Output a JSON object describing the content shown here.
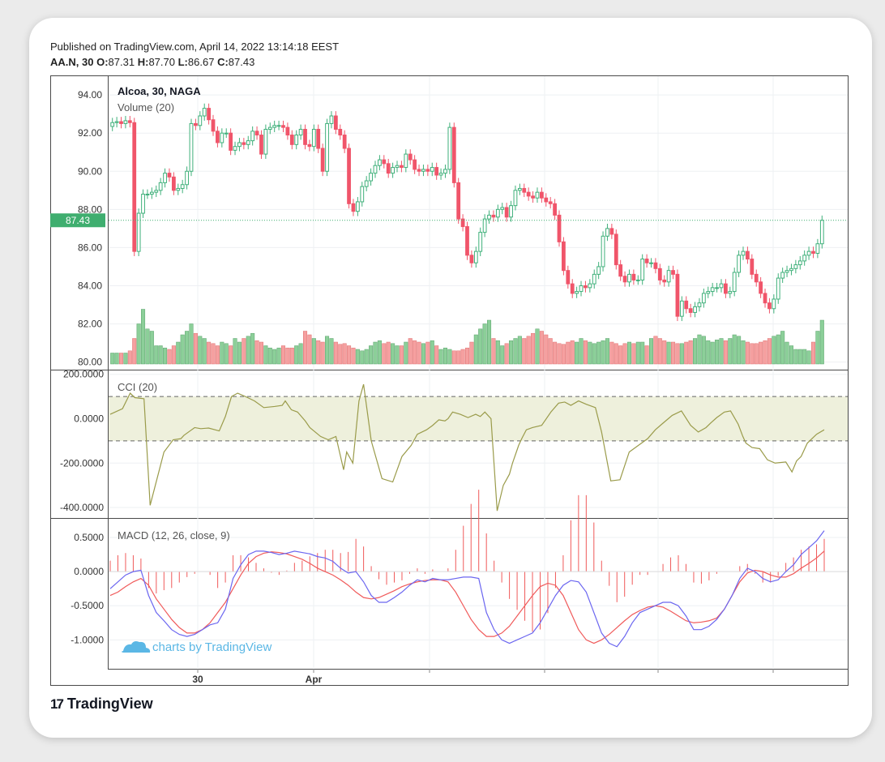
{
  "header": {
    "published": "Published on TradingView.com, April 14, 2022 13:14:18 EEST",
    "symbol": "AA.N, 30",
    "o_label": "O:",
    "o_value": "87.31",
    "h_label": "H:",
    "h_value": "87.70",
    "l_label": "L:",
    "l_value": "86.67",
    "c_label": "C:",
    "c_value": "87.43"
  },
  "colors": {
    "up": "#26a69a",
    "down": "#ef5350",
    "up_candle": "#3fb07a",
    "down_candle": "#f0556a",
    "vol_up": "#8ccf99",
    "vol_down": "#f5a0a0",
    "cci": "#9a9b4a",
    "macd": "#6b66f0",
    "signal": "#f05a5a",
    "price_tag": "#3fae6f"
  },
  "watermark": "charts by TradingView",
  "brand": "TradingView",
  "chart_data": [
    {
      "type": "candlestick",
      "title": "Alcoa, 30, NAGA",
      "volume_label": "Volume (20)",
      "ylim": [
        79.9,
        94.6
      ],
      "yticks": [
        "94.00",
        "92.00",
        "90.00",
        "88.00",
        "86.00",
        "84.00",
        "82.00",
        "80.00"
      ],
      "last_price": "87.43",
      "xticks": [
        "30",
        "Apr"
      ],
      "close": [
        92.55,
        92.6,
        92.5,
        92.65,
        92.55,
        85.8,
        87.8,
        88.8,
        88.8,
        88.9,
        89.0,
        89.4,
        89.9,
        89.7,
        89.0,
        89.1,
        89.3,
        90.0,
        92.5,
        92.4,
        92.9,
        93.3,
        92.7,
        92.1,
        91.5,
        92.0,
        92.0,
        91.1,
        91.3,
        91.5,
        91.4,
        91.6,
        92.1,
        91.9,
        90.9,
        92.2,
        92.3,
        92.4,
        92.4,
        92.3,
        91.9,
        91.4,
        91.9,
        92.2,
        91.4,
        91.3,
        92.2,
        91.2,
        90.0,
        92.5,
        92.9,
        92.2,
        91.9,
        91.2,
        88.3,
        87.9,
        88.4,
        89.2,
        89.5,
        89.9,
        90.3,
        90.6,
        90.4,
        89.9,
        90.2,
        90.3,
        90.2,
        90.9,
        90.6,
        90.1,
        90.0,
        90.1,
        90.0,
        90.2,
        89.8,
        89.9,
        90.1,
        92.3,
        89.4,
        87.5,
        87.1,
        85.6,
        85.2,
        85.8,
        86.8,
        87.5,
        87.7,
        87.6,
        88.0,
        88.1,
        87.6,
        88.2,
        89.0,
        89.1,
        88.9,
        88.7,
        88.6,
        88.9,
        88.6,
        88.4,
        88.3,
        87.7,
        86.3,
        84.8,
        84.1,
        83.6,
        83.7,
        84.0,
        83.9,
        84.1,
        84.6,
        85.0,
        86.6,
        87.0,
        86.7,
        85.1,
        84.5,
        84.2,
        84.6,
        84.3,
        84.3,
        85.4,
        85.2,
        85.2,
        84.9,
        84.3,
        84.2,
        84.8,
        84.6,
        82.4,
        83.2,
        82.8,
        82.6,
        82.9,
        83.1,
        83.6,
        83.7,
        83.9,
        83.9,
        84.1,
        83.6,
        83.7,
        84.7,
        85.6,
        85.8,
        85.4,
        84.6,
        84.2,
        83.6,
        83.1,
        82.8,
        83.3,
        84.4,
        84.7,
        84.8,
        84.9,
        85.1,
        85.3,
        85.6,
        85.8,
        85.7,
        86.2,
        87.43
      ],
      "volume_scale": "relative volume level 0-1 per bar",
      "volume": [
        0.15,
        0.15,
        0.15,
        0.15,
        0.18,
        0.35,
        0.55,
        0.75,
        0.48,
        0.45,
        0.25,
        0.25,
        0.22,
        0.2,
        0.25,
        0.3,
        0.4,
        0.45,
        0.55,
        0.42,
        0.38,
        0.35,
        0.3,
        0.28,
        0.25,
        0.3,
        0.28,
        0.25,
        0.35,
        0.3,
        0.35,
        0.38,
        0.42,
        0.32,
        0.3,
        0.25,
        0.22,
        0.2,
        0.22,
        0.25,
        0.22,
        0.22,
        0.25,
        0.28,
        0.45,
        0.4,
        0.35,
        0.32,
        0.3,
        0.38,
        0.35,
        0.3,
        0.27,
        0.28,
        0.25,
        0.22,
        0.2,
        0.18,
        0.2,
        0.25,
        0.3,
        0.32,
        0.28,
        0.3,
        0.28,
        0.25,
        0.25,
        0.3,
        0.35,
        0.32,
        0.3,
        0.28,
        0.3,
        0.32,
        0.25,
        0.2,
        0.22,
        0.2,
        0.18,
        0.18,
        0.2,
        0.22,
        0.3,
        0.4,
        0.48,
        0.55,
        0.6,
        0.35,
        0.32,
        0.25,
        0.28,
        0.32,
        0.35,
        0.38,
        0.35,
        0.38,
        0.42,
        0.48,
        0.45,
        0.4,
        0.35,
        0.3,
        0.28,
        0.27,
        0.3,
        0.32,
        0.3,
        0.35,
        0.32,
        0.3,
        0.28,
        0.3,
        0.32,
        0.35,
        0.3,
        0.28,
        0.25,
        0.28,
        0.3,
        0.28,
        0.3,
        0.3,
        0.25,
        0.35,
        0.38,
        0.35,
        0.32,
        0.3,
        0.3,
        0.28,
        0.28,
        0.3,
        0.32,
        0.35,
        0.4,
        0.38,
        0.32,
        0.3,
        0.33,
        0.35,
        0.32,
        0.35,
        0.4,
        0.38,
        0.32,
        0.3,
        0.28,
        0.28,
        0.3,
        0.32,
        0.35,
        0.38,
        0.4,
        0.45,
        0.3,
        0.25,
        0.2,
        0.2,
        0.2,
        0.18,
        0.3,
        0.45,
        0.6
      ]
    },
    {
      "type": "line",
      "title": "CCI (20)",
      "ylim": [
        -440,
        210
      ],
      "yticks": [
        "200.0000",
        "0.0000",
        "-200.0000",
        "-400.0000"
      ],
      "bands": [
        100,
        -100
      ],
      "x": [
        0,
        8,
        13,
        16,
        22,
        26,
        35,
        41,
        46,
        48,
        52,
        55,
        59,
        64,
        71,
        75,
        79,
        83,
        88,
        94,
        100,
        107,
        112,
        114,
        118,
        122,
        127,
        130,
        137,
        142,
        147,
        152,
        154,
        158,
        162,
        165,
        170,
        177,
        184,
        190,
        196,
        200,
        206,
        210,
        214,
        218,
        220,
        223,
        228,
        233,
        238,
        241,
        244,
        248,
        252,
        256,
        260,
        262,
        266,
        268,
        271,
        275,
        281,
        287,
        292,
        296,
        300,
        305,
        310,
        316,
        320,
        326,
        332,
        338,
        344,
        350,
        355,
        360,
        366,
        372,
        378,
        383,
        388,
        391,
        395,
        400,
        404,
        409,
        412,
        414,
        418,
        423,
        428,
        433,
        440,
        444,
        447,
        450,
        454,
        460,
        465
      ],
      "values": [
        20,
        45,
        115,
        95,
        90,
        -390,
        -150,
        -95,
        -90,
        -75,
        -55,
        -40,
        -45,
        -42,
        -55,
        10,
        100,
        115,
        100,
        80,
        50,
        55,
        60,
        80,
        40,
        30,
        -10,
        -40,
        -80,
        -95,
        -80,
        -230,
        -150,
        -200,
        80,
        155,
        -100,
        -270,
        -285,
        -170,
        -120,
        -70,
        -50,
        -30,
        -5,
        -10,
        0,
        30,
        20,
        5,
        20,
        10,
        30,
        0,
        -415,
        -300,
        -250,
        -200,
        -120,
        -90,
        -50,
        -40,
        -30,
        30,
        70,
        75,
        60,
        80,
        65,
        50,
        -60,
        -280,
        -275,
        -150,
        -120,
        -90,
        -50,
        -20,
        15,
        35,
        -30,
        -60,
        -40,
        -20,
        5,
        30,
        35,
        -25,
        -80,
        -110,
        -130,
        -135,
        -185,
        -200,
        -195,
        -240,
        -190,
        -170,
        -110,
        -70,
        -50
      ]
    },
    {
      "type": "line",
      "title": "MACD (12, 26, close, 9)",
      "ylim": [
        -1.4,
        0.75
      ],
      "yticks": [
        "0.5000",
        "0.0000",
        "-0.5000",
        "-1.0000"
      ],
      "macd": [
        -0.25,
        -0.15,
        -0.05,
        0.0,
        0.02,
        -0.35,
        -0.6,
        -0.72,
        -0.85,
        -0.92,
        -0.95,
        -0.92,
        -0.85,
        -0.78,
        -0.75,
        -0.55,
        -0.1,
        0.1,
        0.25,
        0.3,
        0.3,
        0.28,
        0.25,
        0.27,
        0.3,
        0.28,
        0.26,
        0.22,
        0.2,
        0.15,
        0.05,
        -0.02,
        0.0,
        -0.15,
        -0.35,
        -0.45,
        -0.45,
        -0.38,
        -0.3,
        -0.2,
        -0.12,
        -0.15,
        -0.1,
        -0.12,
        -0.12,
        -0.1,
        -0.08,
        -0.08,
        -0.1,
        -0.6,
        -0.85,
        -1.0,
        -1.05,
        -1.0,
        -0.95,
        -0.9,
        -0.75,
        -0.55,
        -0.35,
        -0.2,
        -0.13,
        -0.15,
        -0.3,
        -0.6,
        -0.9,
        -1.05,
        -1.1,
        -0.95,
        -0.75,
        -0.6,
        -0.55,
        -0.5,
        -0.45,
        -0.45,
        -0.5,
        -0.65,
        -0.85,
        -0.85,
        -0.8,
        -0.7,
        -0.55,
        -0.35,
        -0.1,
        0.05,
        0.0,
        -0.1,
        -0.15,
        -0.12,
        0.0,
        0.1,
        0.25,
        0.35,
        0.45,
        0.6
      ],
      "signal": [
        -0.35,
        -0.3,
        -0.22,
        -0.15,
        -0.1,
        -0.2,
        -0.4,
        -0.55,
        -0.7,
        -0.82,
        -0.9,
        -0.9,
        -0.85,
        -0.75,
        -0.6,
        -0.45,
        -0.25,
        -0.05,
        0.12,
        0.22,
        0.27,
        0.29,
        0.28,
        0.26,
        0.22,
        0.18,
        0.12,
        0.05,
        0.0,
        -0.05,
        -0.12,
        -0.2,
        -0.3,
        -0.38,
        -0.4,
        -0.38,
        -0.33,
        -0.28,
        -0.22,
        -0.18,
        -0.15,
        -0.13,
        -0.12,
        -0.12,
        -0.15,
        -0.3,
        -0.5,
        -0.7,
        -0.85,
        -0.95,
        -0.95,
        -0.9,
        -0.8,
        -0.65,
        -0.5,
        -0.35,
        -0.22,
        -0.17,
        -0.2,
        -0.35,
        -0.6,
        -0.85,
        -1.0,
        -1.05,
        -1.0,
        -0.92,
        -0.82,
        -0.72,
        -0.63,
        -0.57,
        -0.52,
        -0.5,
        -0.52,
        -0.58,
        -0.65,
        -0.72,
        -0.75,
        -0.74,
        -0.72,
        -0.68,
        -0.55,
        -0.35,
        -0.15,
        -0.02,
        0.02,
        0.0,
        -0.05,
        -0.08,
        -0.08,
        -0.03,
        0.05,
        0.12,
        0.2,
        0.3
      ]
    }
  ]
}
